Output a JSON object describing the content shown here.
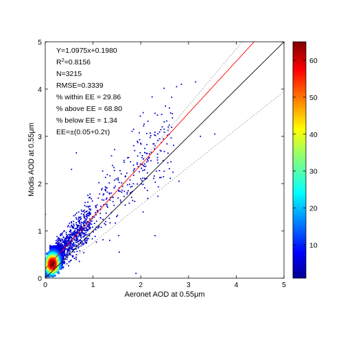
{
  "chart_data": {
    "type": "scatter",
    "xlabel": "Aeronet AOD at 0.55μm",
    "ylabel": "Modis AOD at 0.55μm",
    "xlim": [
      0,
      5
    ],
    "ylim": [
      0,
      5
    ],
    "xticks": [
      "0",
      "1",
      "2",
      "3",
      "4",
      "5"
    ],
    "yticks": [
      "0",
      "1",
      "2",
      "3",
      "4",
      "5"
    ],
    "grid": false,
    "colorbar": {
      "range": [
        1,
        65
      ],
      "ticks": [
        "10",
        "20",
        "30",
        "40",
        "50",
        "60"
      ],
      "colormap": "jet",
      "meaning": "point density"
    },
    "stats": {
      "equation": "Y=1.0975x+0.1980",
      "r2_prefix": "R",
      "r2_sup": "2",
      "r2_value": "=0.8156",
      "n": "N=3215",
      "rmse": "RMSE=0.3339",
      "within": "% within EE = 29.86",
      "above": "% above EE = 68.80",
      "below": "% below EE = 1.34",
      "ee": "EE=±(0.05+0.2τ)"
    },
    "n_points": 3215,
    "regression": {
      "slope": 1.0975,
      "intercept": 0.198,
      "color": "#ff0000"
    },
    "one_to_one": {
      "slope": 1,
      "intercept": 0,
      "color": "#000000"
    },
    "ee_envelope": {
      "upper": {
        "slope": 1.2,
        "intercept": 0.05
      },
      "lower": {
        "slope": 0.8,
        "intercept": -0.05
      },
      "color": "#8c8c8c",
      "style": "dotted"
    },
    "density_cluster": {
      "x_center": 0.15,
      "y_center": 0.3,
      "max_density": 65
    },
    "sample_outliers": [
      [
        2.75,
        4.05
      ],
      [
        2.85,
        4.1
      ],
      [
        3.15,
        4.15
      ],
      [
        2.05,
        3.5
      ],
      [
        1.85,
        3.15
      ],
      [
        2.45,
        3.2
      ],
      [
        3.55,
        3.05
      ],
      [
        3.25,
        3.0
      ],
      [
        2.3,
        2.8
      ],
      [
        2.35,
        2.5
      ],
      [
        2.0,
        2.1
      ],
      [
        2.8,
        2.05
      ],
      [
        0.65,
        2.65
      ],
      [
        0.55,
        2.3
      ],
      [
        2.05,
        1.4
      ],
      [
        1.55,
        0.55
      ],
      [
        1.9,
        0.1
      ],
      [
        0.0,
        1.35
      ],
      [
        1.35,
        0.8
      ],
      [
        2.3,
        0.9
      ]
    ]
  }
}
